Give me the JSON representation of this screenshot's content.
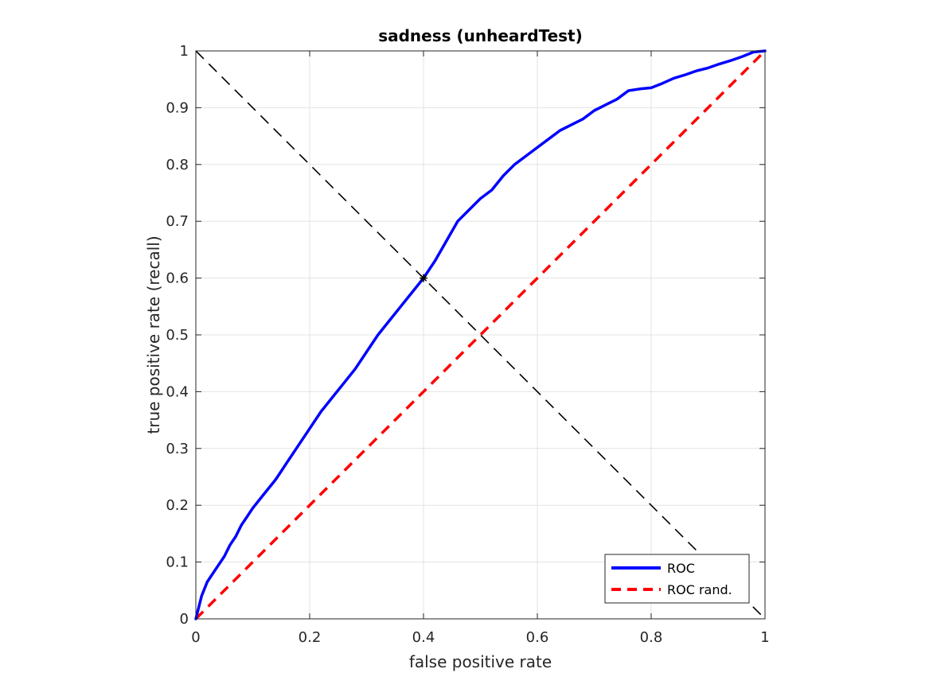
{
  "chart_data": {
    "type": "line",
    "title": "sadness (unheardTest)",
    "xlabel": "false positive rate",
    "ylabel": "true positive rate (recall)",
    "xlim": [
      0,
      1
    ],
    "ylim": [
      0,
      1
    ],
    "grid": true,
    "x_ticks": [
      "0",
      "0.2",
      "0.4",
      "0.6",
      "0.8",
      "1"
    ],
    "y_ticks": [
      "0",
      "0.1",
      "0.2",
      "0.3",
      "0.4",
      "0.5",
      "0.6",
      "0.7",
      "0.8",
      "0.9",
      "1"
    ],
    "legend_position": "bottom-right",
    "series": [
      {
        "name": "ROC",
        "color": "#0000ff",
        "style": "solid",
        "x": [
          0,
          0.005,
          0.01,
          0.02,
          0.03,
          0.04,
          0.05,
          0.06,
          0.07,
          0.08,
          0.09,
          0.1,
          0.12,
          0.14,
          0.15,
          0.16,
          0.18,
          0.2,
          0.22,
          0.24,
          0.26,
          0.28,
          0.3,
          0.32,
          0.34,
          0.36,
          0.38,
          0.4,
          0.42,
          0.44,
          0.46,
          0.48,
          0.5,
          0.52,
          0.54,
          0.56,
          0.58,
          0.6,
          0.62,
          0.64,
          0.66,
          0.68,
          0.7,
          0.72,
          0.74,
          0.76,
          0.78,
          0.8,
          0.82,
          0.84,
          0.86,
          0.88,
          0.9,
          0.92,
          0.94,
          0.96,
          0.98,
          1.0
        ],
        "y": [
          0,
          0.02,
          0.04,
          0.065,
          0.08,
          0.095,
          0.11,
          0.13,
          0.145,
          0.165,
          0.18,
          0.195,
          0.22,
          0.245,
          0.26,
          0.275,
          0.305,
          0.335,
          0.365,
          0.39,
          0.415,
          0.44,
          0.47,
          0.5,
          0.525,
          0.55,
          0.575,
          0.6,
          0.63,
          0.665,
          0.7,
          0.72,
          0.74,
          0.755,
          0.78,
          0.8,
          0.815,
          0.83,
          0.845,
          0.86,
          0.87,
          0.88,
          0.895,
          0.905,
          0.915,
          0.93,
          0.933,
          0.935,
          0.943,
          0.952,
          0.958,
          0.965,
          0.97,
          0.977,
          0.983,
          0.99,
          0.998,
          1.0
        ]
      },
      {
        "name": "ROC rand.",
        "color": "#ff0000",
        "style": "dashed",
        "x": [
          0,
          1
        ],
        "y": [
          0,
          1
        ]
      }
    ],
    "reference_line": {
      "color": "#000000",
      "style": "dashed",
      "x": [
        0,
        1
      ],
      "y": [
        1,
        0
      ]
    },
    "marker": {
      "symbol": "*",
      "x": 0.4,
      "y": 0.6,
      "color": "#000000"
    }
  }
}
